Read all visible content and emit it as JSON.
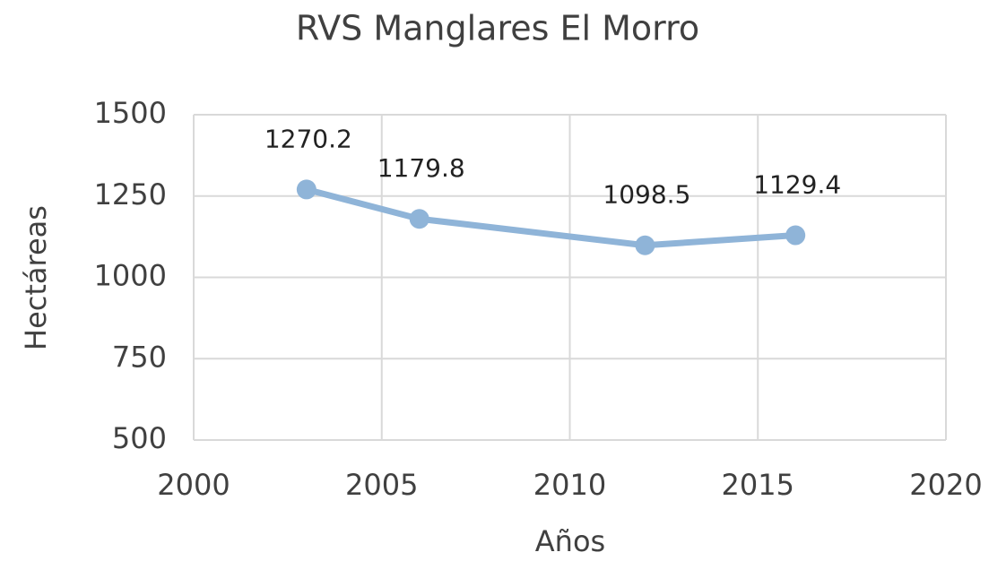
{
  "chart_data": {
    "type": "line",
    "title": "RVS Manglares El Morro",
    "x": [
      2003,
      2006,
      2012,
      2016
    ],
    "series": [
      {
        "name": "RVS Manglares El Morro",
        "color": "#8fb4d8",
        "values": [
          1270.2,
          1179.8,
          1098.5,
          1129.4
        ]
      }
    ],
    "xlim": [
      2000,
      2020
    ],
    "xticks": [
      2000,
      2005,
      2010,
      2015,
      2020
    ],
    "ylim": [
      500,
      1500
    ],
    "yticks": [
      500,
      750,
      1000,
      1250,
      1500
    ],
    "xlabel": "Años",
    "ylabel": "Hectáreas",
    "grid": true,
    "data_labels": true
  }
}
